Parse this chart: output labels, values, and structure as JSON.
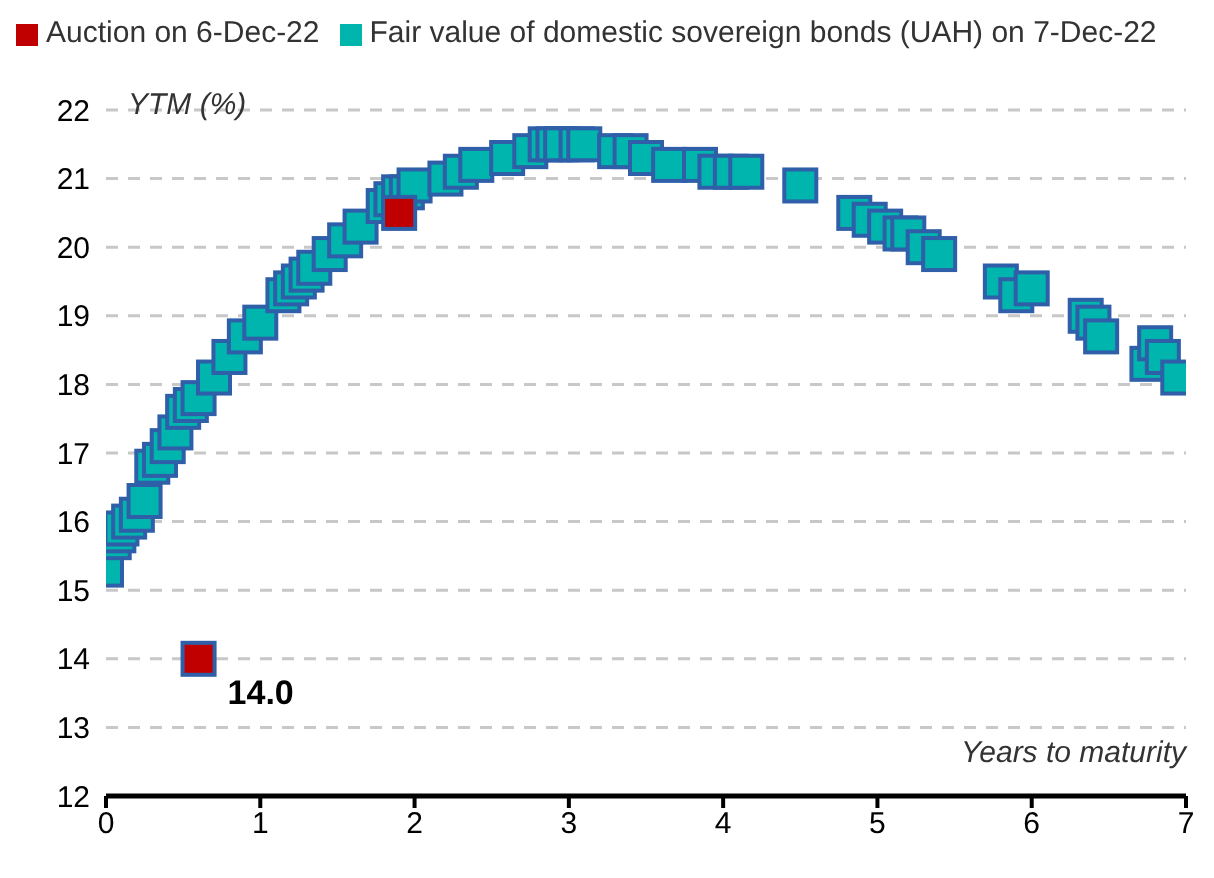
{
  "chart_data": {
    "type": "scatter",
    "xlabel": "Years to maturity",
    "ylabel": "YTM (%)",
    "xlim": [
      0,
      7
    ],
    "xticks": [
      0,
      1,
      2,
      3,
      4,
      5,
      6,
      7
    ],
    "ylim": [
      12,
      22
    ],
    "yticks": [
      12,
      13,
      14,
      15,
      16,
      17,
      18,
      19,
      20,
      21,
      22
    ],
    "grid": "y",
    "legend": "top",
    "marker": "square",
    "series": [
      {
        "name": "Fair value of domestic sovereign bonds (UAH) on 7-Dec-22",
        "color": "#00b5ad",
        "x": [
          0,
          0.05,
          0.08,
          0.1,
          0.15,
          0.2,
          0.25,
          0.3,
          0.35,
          0.4,
          0.45,
          0.5,
          0.55,
          0.6,
          0.7,
          0.8,
          0.9,
          1.0,
          1.15,
          1.2,
          1.25,
          1.3,
          1.35,
          1.45,
          1.55,
          1.65,
          1.8,
          1.85,
          1.9,
          1.95,
          2.0,
          2.2,
          2.3,
          2.4,
          2.6,
          2.75,
          2.85,
          2.9,
          2.95,
          3.05,
          3.1,
          3.3,
          3.4,
          3.5,
          3.65,
          3.85,
          3.95,
          4.05,
          4.15,
          4.5,
          4.85,
          4.95,
          5.05,
          5.15,
          5.2,
          5.3,
          5.4,
          5.8,
          5.9,
          6.0,
          6.35,
          6.4,
          6.45,
          6.75,
          6.8,
          6.85,
          6.95
        ],
        "values": [
          15.3,
          15.7,
          15.8,
          15.9,
          16.0,
          16.1,
          16.3,
          16.8,
          16.9,
          17.1,
          17.3,
          17.6,
          17.7,
          17.8,
          18.1,
          18.4,
          18.7,
          18.9,
          19.3,
          19.4,
          19.5,
          19.6,
          19.7,
          19.9,
          20.1,
          20.3,
          20.6,
          20.7,
          20.8,
          20.8,
          20.9,
          21.0,
          21.1,
          21.2,
          21.3,
          21.4,
          21.5,
          21.5,
          21.5,
          21.5,
          21.5,
          21.4,
          21.4,
          21.3,
          21.2,
          21.2,
          21.1,
          21.1,
          21.1,
          20.9,
          20.5,
          20.4,
          20.3,
          20.2,
          20.2,
          20.0,
          19.9,
          19.5,
          19.3,
          19.4,
          19.0,
          18.9,
          18.7,
          18.3,
          18.6,
          18.4,
          18.1
        ]
      },
      {
        "name": "Auction on 6-Dec-22",
        "color": "#c00000",
        "x": [
          0.6,
          1.9
        ],
        "values": [
          14.0,
          20.5
        ],
        "value_labels": [
          "14.0",
          null
        ]
      }
    ]
  }
}
